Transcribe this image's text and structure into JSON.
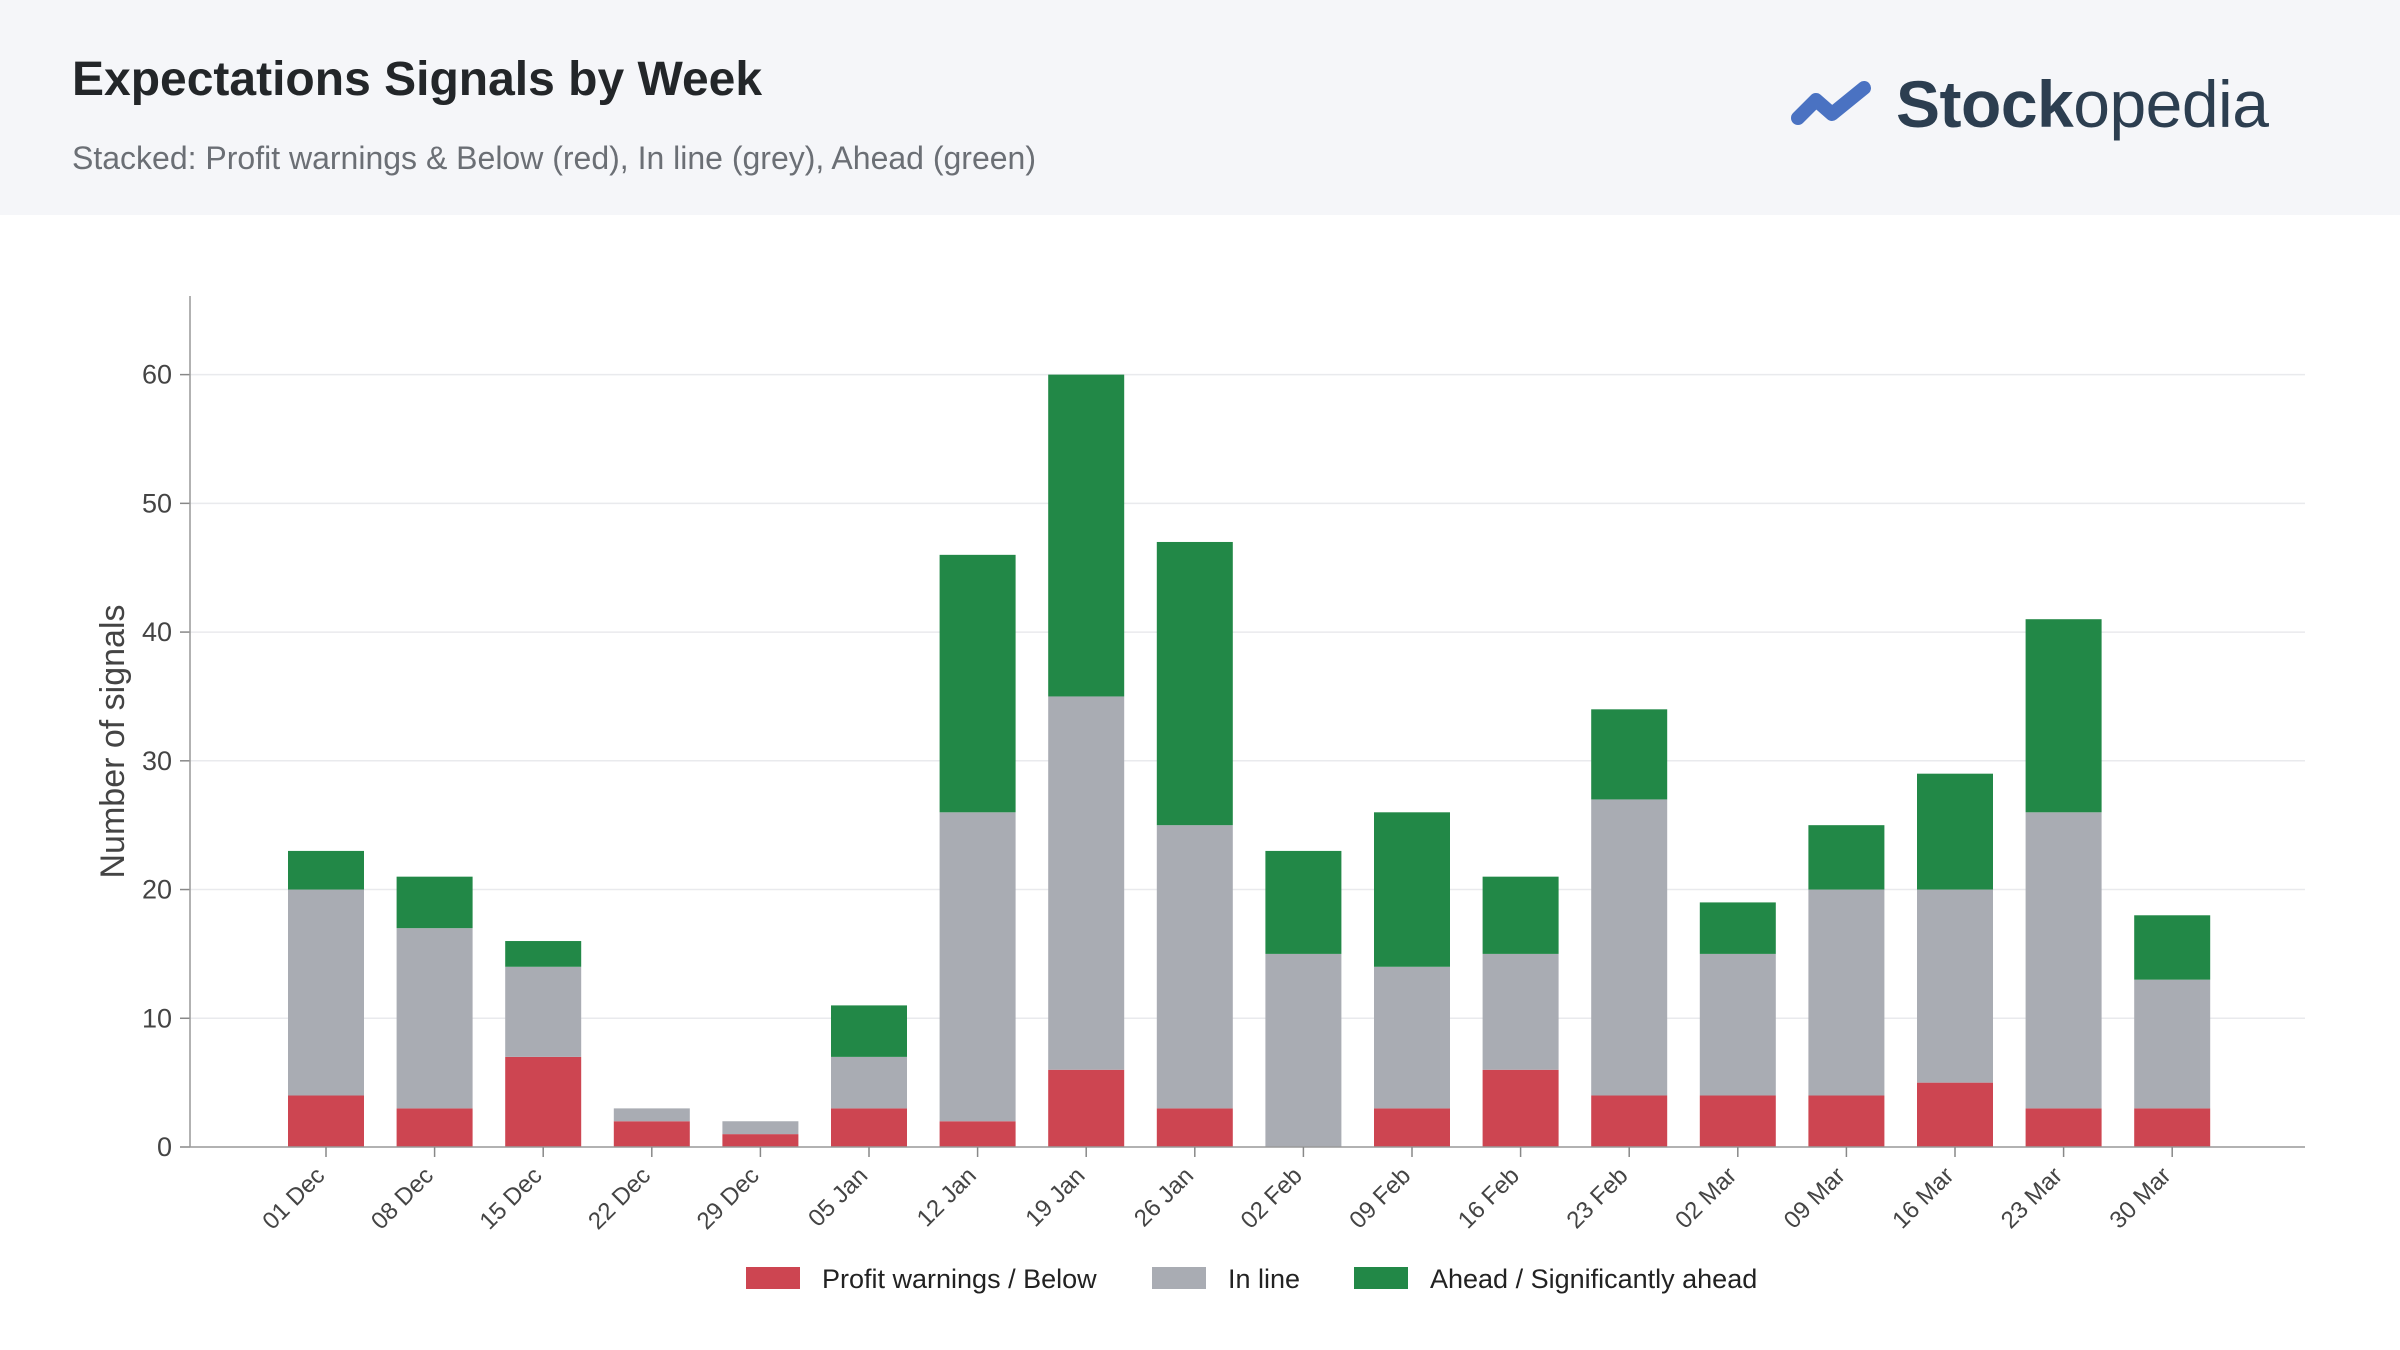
{
  "header": {
    "title": "Expectations Signals by Week",
    "subtitle": "Stacked: Profit warnings & Below (red), In line (grey), Ahead (green)",
    "logo_bold": "Stock",
    "logo_regular": "opedia",
    "logo_color": "#4a72c2"
  },
  "chart_data": {
    "type": "bar",
    "stacked": true,
    "categories": [
      "01 Dec",
      "08 Dec",
      "15 Dec",
      "22 Dec",
      "29 Dec",
      "05 Jan",
      "12 Jan",
      "19 Jan",
      "26 Jan",
      "02 Feb",
      "09 Feb",
      "16 Feb",
      "23 Feb",
      "02 Mar",
      "09 Mar",
      "16 Mar",
      "23 Mar",
      "30 Mar"
    ],
    "series": [
      {
        "name": "Profit warnings / Below",
        "color": "#cd4551",
        "values": [
          4,
          3,
          7,
          2,
          1,
          3,
          2,
          6,
          3,
          0,
          3,
          6,
          4,
          4,
          4,
          5,
          3,
          3
        ]
      },
      {
        "name": "In line",
        "color": "#a9acb3",
        "values": [
          16,
          14,
          7,
          1,
          1,
          4,
          24,
          29,
          22,
          15,
          11,
          9,
          23,
          11,
          16,
          15,
          23,
          10
        ]
      },
      {
        "name": "Ahead / Significantly ahead",
        "color": "#228847",
        "values": [
          3,
          4,
          2,
          0,
          0,
          4,
          20,
          25,
          22,
          8,
          12,
          6,
          7,
          4,
          5,
          9,
          15,
          5
        ]
      }
    ],
    "ylabel": "Number of signals",
    "ylim": [
      0,
      63
    ],
    "yticks": [
      0,
      10,
      20,
      30,
      40,
      50,
      60
    ],
    "grid": true,
    "legend_position": "bottom"
  }
}
